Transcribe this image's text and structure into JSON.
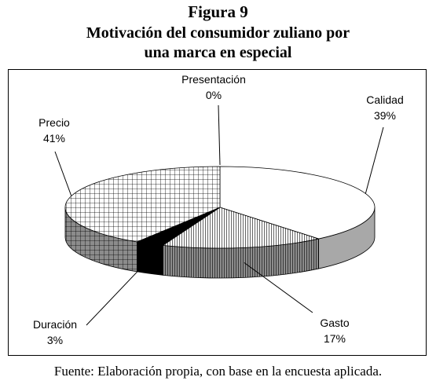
{
  "figure": {
    "label": "Figura 9",
    "title_line1": "Motivación del consumidor zuliano por",
    "title_line2": "una marca en especial"
  },
  "source_note": "Fuente: Elaboración propia, con base en la encuesta aplicada.",
  "chart_data": {
    "type": "pie",
    "title": "Motivación del consumidor zuliano por una marca en especial",
    "three_d": true,
    "categories": [
      "Calidad",
      "Gasto",
      "Duración",
      "Precio",
      "Presentación"
    ],
    "values": [
      39,
      17,
      3,
      41,
      0
    ],
    "value_labels": [
      "39%",
      "17%",
      "3%",
      "41%",
      "0%"
    ],
    "fills": [
      "white",
      "vertical-hatch",
      "black",
      "grid-hatch",
      "white"
    ]
  }
}
